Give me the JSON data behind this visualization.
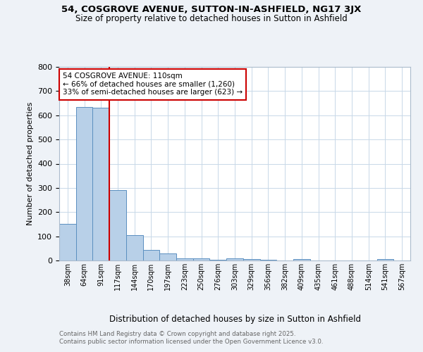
{
  "title": "54, COSGROVE AVENUE, SUTTON-IN-ASHFIELD, NG17 3JX",
  "subtitle": "Size of property relative to detached houses in Sutton in Ashfield",
  "xlabel": "Distribution of detached houses by size in Sutton in Ashfield",
  "ylabel": "Number of detached properties",
  "categories": [
    "38sqm",
    "64sqm",
    "91sqm",
    "117sqm",
    "144sqm",
    "170sqm",
    "197sqm",
    "223sqm",
    "250sqm",
    "276sqm",
    "303sqm",
    "329sqm",
    "356sqm",
    "382sqm",
    "409sqm",
    "435sqm",
    "461sqm",
    "488sqm",
    "514sqm",
    "541sqm",
    "567sqm"
  ],
  "values": [
    150,
    635,
    630,
    290,
    105,
    45,
    30,
    10,
    10,
    3,
    8,
    5,
    3,
    0,
    5,
    0,
    0,
    0,
    0,
    5,
    0
  ],
  "bar_color": "#b8d0e8",
  "bar_edge_color": "#5a8fc0",
  "annotation_text_line1": "54 COSGROVE AVENUE: 110sqm",
  "annotation_text_line2": "← 66% of detached houses are smaller (1,260)",
  "annotation_text_line3": "33% of semi-detached houses are larger (623) →",
  "annotation_box_color": "#ffffff",
  "annotation_box_edge": "#cc0000",
  "red_line_color": "#cc0000",
  "footnote_line1": "Contains HM Land Registry data © Crown copyright and database right 2025.",
  "footnote_line2": "Contains public sector information licensed under the Open Government Licence v3.0.",
  "ylim": [
    0,
    800
  ],
  "background_color": "#eef2f7",
  "plot_background": "#ffffff",
  "grid_color": "#c8d8e8"
}
